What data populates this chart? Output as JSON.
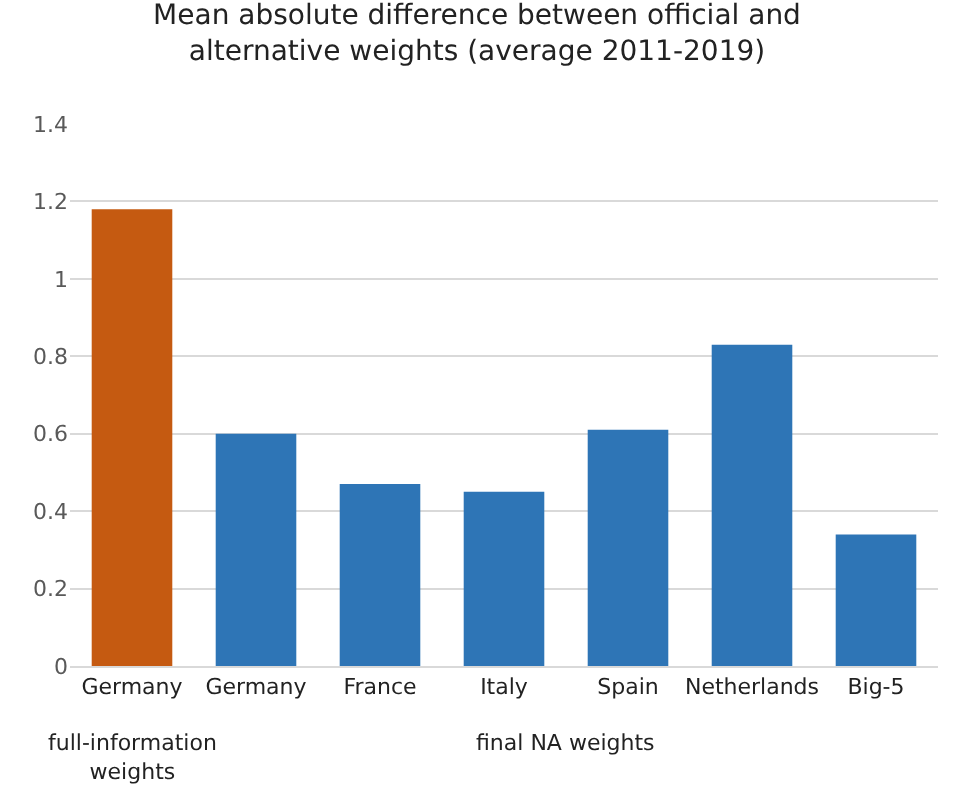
{
  "chart_data": {
    "type": "bar",
    "title": "Mean absolute difference between official and alternative weights (average 2011-2019)",
    "categories": [
      "Germany",
      "Germany",
      "France",
      "Italy",
      "Spain",
      "Netherlands",
      "Big-5"
    ],
    "values": [
      1.18,
      0.6,
      0.47,
      0.45,
      0.61,
      0.83,
      0.34
    ],
    "colors": [
      "#c55a11",
      "#2e75b6",
      "#2e75b6",
      "#2e75b6",
      "#2e75b6",
      "#2e75b6",
      "#2e75b6"
    ],
    "ylim": [
      0,
      1.4
    ],
    "yticks": [
      0,
      0.2,
      0.4,
      0.6,
      0.8,
      1,
      1.2,
      1.4
    ],
    "grid": "y",
    "legend": false,
    "annotations": [
      "full-information weights",
      "final NA weights"
    ]
  }
}
